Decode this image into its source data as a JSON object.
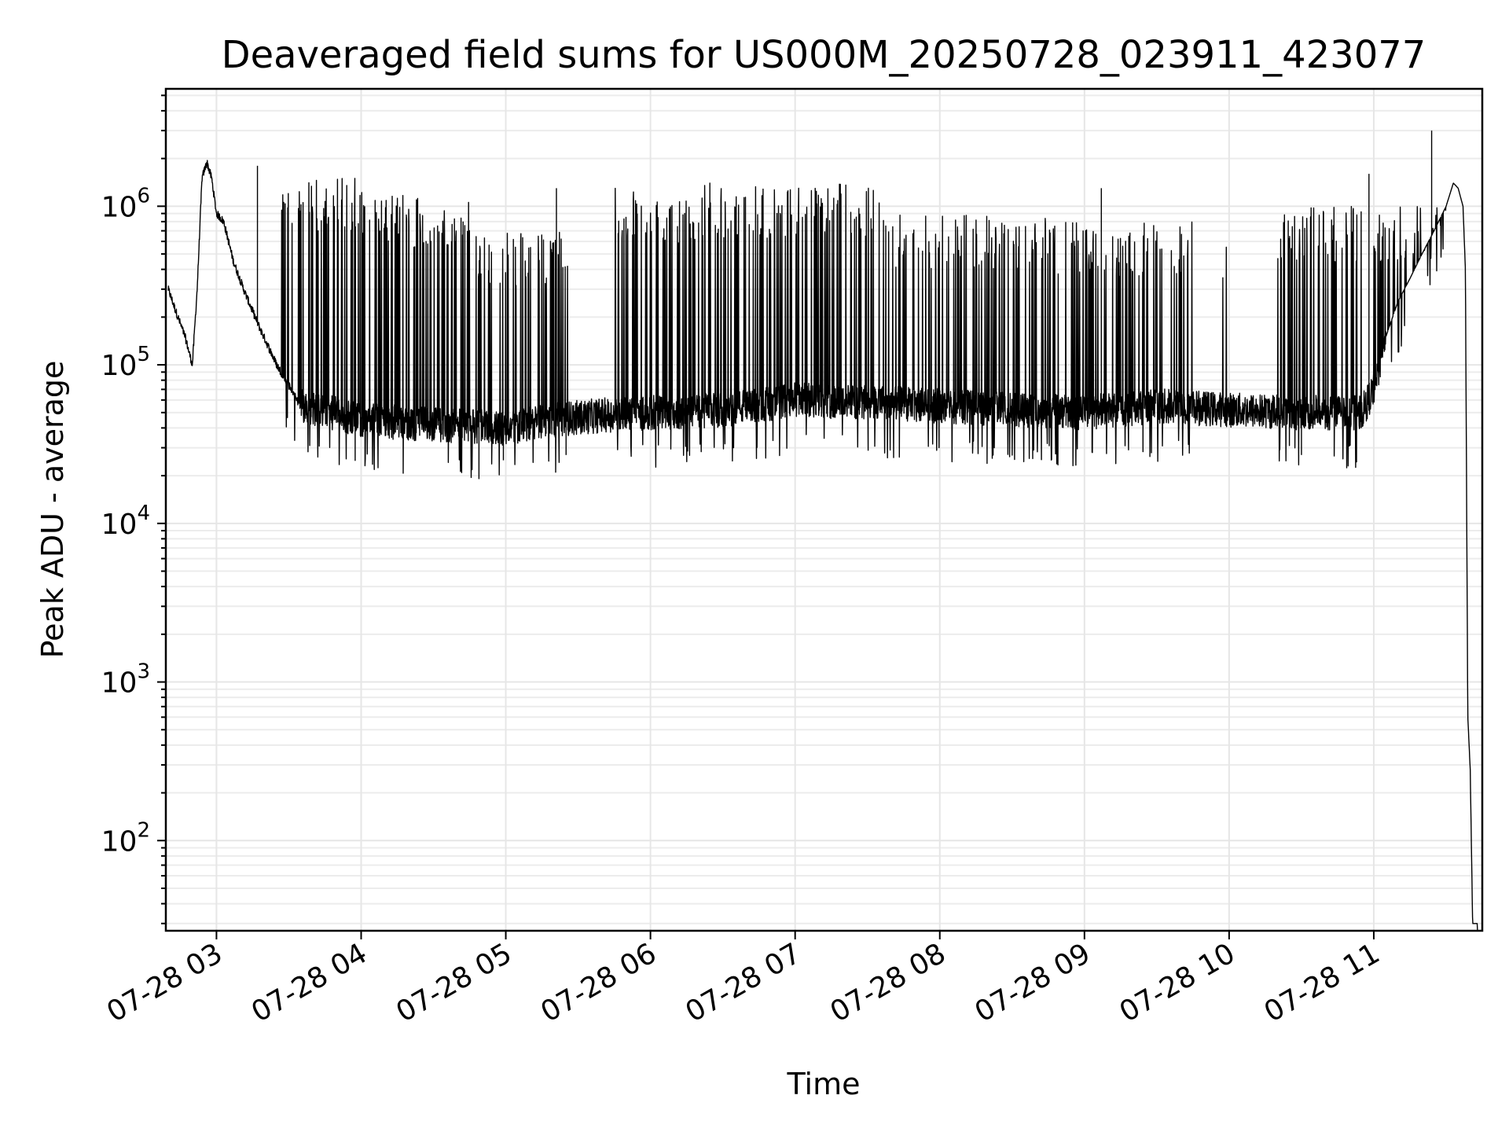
{
  "chart_data": {
    "type": "line",
    "title": "Deaveraged field sums for US000M_20250728_023911_423077",
    "xlabel": "Time",
    "ylabel": "Peak ADU - average",
    "y_scale": "log",
    "grid": true,
    "xlim": [
      "2025-07-28 02:39",
      "2025-07-28 11:45"
    ],
    "ylim": [
      27,
      5500
    ],
    "x_ticks": [
      "07-28 03",
      "07-28 04",
      "07-28 05",
      "07-28 06",
      "07-28 07",
      "07-28 08",
      "07-28 09",
      "07-28 10",
      "07-28 11"
    ],
    "y_ticks": [
      {
        "base": "10",
        "exp": "2",
        "value": 100
      },
      {
        "base": "10",
        "exp": "3",
        "value": 1000
      },
      {
        "base": "10",
        "exp": "4",
        "value": 10000
      },
      {
        "base": "10",
        "exp": "5",
        "value": 100000
      },
      {
        "base": "10",
        "exp": "6",
        "value": 1000000
      }
    ],
    "series": [
      {
        "color": "#000000",
        "baseline": {
          "x": [
            "2025-07-28 02:40",
            "2025-07-28 02:44",
            "2025-07-28 02:47",
            "2025-07-28 02:50",
            "2025-07-28 02:52",
            "2025-07-28 02:54",
            "2025-07-28 02:56",
            "2025-07-28 02:58",
            "2025-07-28 03:00",
            "2025-07-28 03:03",
            "2025-07-28 03:07",
            "2025-07-28 03:12",
            "2025-07-28 03:18",
            "2025-07-28 03:25",
            "2025-07-28 03:35",
            "2025-07-28 04:00",
            "2025-07-28 04:30",
            "2025-07-28 05:00",
            "2025-07-28 05:20",
            "2025-07-28 05:40",
            "2025-07-28 06:00",
            "2025-07-28 06:30",
            "2025-07-28 07:00",
            "2025-07-28 07:30",
            "2025-07-28 08:00",
            "2025-07-28 08:30",
            "2025-07-28 09:00",
            "2025-07-28 09:30",
            "2025-07-28 10:00",
            "2025-07-28 10:30",
            "2025-07-28 10:55",
            "2025-07-28 11:00",
            "2025-07-28 11:05",
            "2025-07-28 11:10",
            "2025-07-28 11:15",
            "2025-07-28 11:20",
            "2025-07-28 11:25",
            "2025-07-28 11:30",
            "2025-07-28 11:33",
            "2025-07-28 11:35",
            "2025-07-28 11:37",
            "2025-07-28 11:38",
            "2025-07-28 11:39",
            "2025-07-28 11:40",
            "2025-07-28 11:41",
            "2025-07-28 11:42",
            "2025-07-28 11:43"
          ],
          "y": [
            300000,
            200000,
            150000,
            100000,
            300000,
            1500000,
            1900000,
            1500000,
            900000,
            800000,
            450000,
            280000,
            170000,
            100000,
            55000,
            45000,
            42000,
            40000,
            45000,
            48000,
            50000,
            52000,
            60000,
            58000,
            55000,
            52000,
            50000,
            55000,
            52000,
            50000,
            50000,
            70000,
            150000,
            250000,
            350000,
            500000,
            700000,
            1000000,
            1400000,
            1300000,
            1000000,
            400000,
            600,
            280,
            30,
            30,
            30
          ]
        },
        "spike_windows": [
          {
            "start": "2025-07-28 03:27",
            "end": "2025-07-28 04:05",
            "peak": 1500000
          },
          {
            "start": "2025-07-28 04:05",
            "end": "2025-07-28 04:45",
            "peak": 1200000
          },
          {
            "start": "2025-07-28 04:45",
            "end": "2025-07-28 05:25",
            "peak": 700000
          },
          {
            "start": "2025-07-28 05:45",
            "end": "2025-07-28 06:20",
            "peak": 1300000
          },
          {
            "start": "2025-07-28 06:20",
            "end": "2025-07-28 07:40",
            "peak": 1400000
          },
          {
            "start": "2025-07-28 07:40",
            "end": "2025-07-28 08:45",
            "peak": 900000
          },
          {
            "start": "2025-07-28 08:45",
            "end": "2025-07-28 09:45",
            "peak": 800000
          },
          {
            "start": "2025-07-28 10:20",
            "end": "2025-07-28 10:55",
            "peak": 1000000
          },
          {
            "start": "2025-07-28 11:00",
            "end": "2025-07-28 11:30",
            "peak": 1000000
          }
        ],
        "notable_peaks": [
          {
            "x": "2025-07-28 11:24",
            "y": 3000000
          },
          {
            "x": "2025-07-28 10:58",
            "y": 1600000
          },
          {
            "x": "2025-07-28 09:07",
            "y": 1300000
          },
          {
            "x": "2025-07-28 05:21",
            "y": 1300000
          },
          {
            "x": "2025-07-28 03:17",
            "y": 1800000
          }
        ],
        "minimum_dips": [
          {
            "x": "2025-07-28 04:59",
            "y": 25000
          },
          {
            "x": "2025-07-28 05:25",
            "y": 27000
          },
          {
            "x": "2025-07-28 10:30",
            "y": 27000
          }
        ]
      }
    ]
  }
}
